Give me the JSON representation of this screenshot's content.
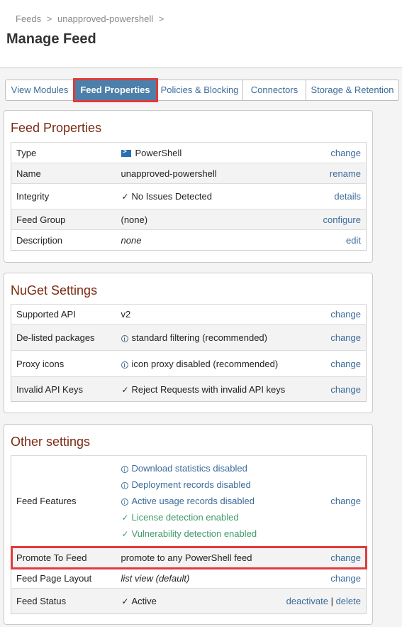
{
  "breadcrumb": {
    "root": "Feeds",
    "sep1": ">",
    "feed": "unapproved-powershell",
    "sep2": ">"
  },
  "page_title": "Manage Feed",
  "tabs": [
    {
      "label": "View Modules"
    },
    {
      "label": "Feed Properties"
    },
    {
      "label": "Policies & Blocking"
    },
    {
      "label": "Connectors"
    },
    {
      "label": "Storage & Retention"
    }
  ],
  "feed_properties": {
    "title": "Feed Properties",
    "rows": [
      {
        "key": "Type",
        "value": "PowerShell",
        "action": "change"
      },
      {
        "key": "Name",
        "value": "unapproved-powershell",
        "action": "rename"
      },
      {
        "key": "Integrity",
        "value": "No Issues Detected",
        "action": "details"
      },
      {
        "key": "Feed Group",
        "value": "(none)",
        "action": "configure"
      },
      {
        "key": "Description",
        "value": "none",
        "action": "edit"
      }
    ]
  },
  "nuget": {
    "title": "NuGet Settings",
    "rows": [
      {
        "key": "Supported API",
        "value": "v2",
        "action": "change"
      },
      {
        "key": "De-listed packages",
        "value": "standard filtering (recommended)",
        "action": "change"
      },
      {
        "key": "Proxy icons",
        "value": "icon proxy disabled (recommended)",
        "action": "change"
      },
      {
        "key": "Invalid API Keys",
        "value": "Reject Requests with invalid API keys",
        "action": "change"
      }
    ]
  },
  "other": {
    "title": "Other settings",
    "features_key": "Feed Features",
    "features": [
      {
        "text": "Download statistics disabled"
      },
      {
        "text": "Deployment records disabled"
      },
      {
        "text": "Active usage records disabled"
      },
      {
        "text": "License detection enabled"
      },
      {
        "text": "Vulnerability detection enabled"
      }
    ],
    "features_action": "change",
    "promote": {
      "key": "Promote To Feed",
      "value": "promote to any PowerShell feed",
      "action": "change"
    },
    "layout": {
      "key": "Feed Page Layout",
      "value": "list view (default)",
      "action": "change"
    },
    "status": {
      "key": "Feed Status",
      "value": "Active",
      "action1": "deactivate",
      "sep": "|",
      "action2": "delete"
    }
  },
  "colors": {
    "accent": "#4d7fab",
    "link": "#3a6b9c",
    "success": "#3f9a6a",
    "highlight": "#e03b3b",
    "section_title": "#7a2a12"
  },
  "icons": {
    "type": "powershell-icon",
    "check": "check-icon",
    "info": "info-icon"
  }
}
